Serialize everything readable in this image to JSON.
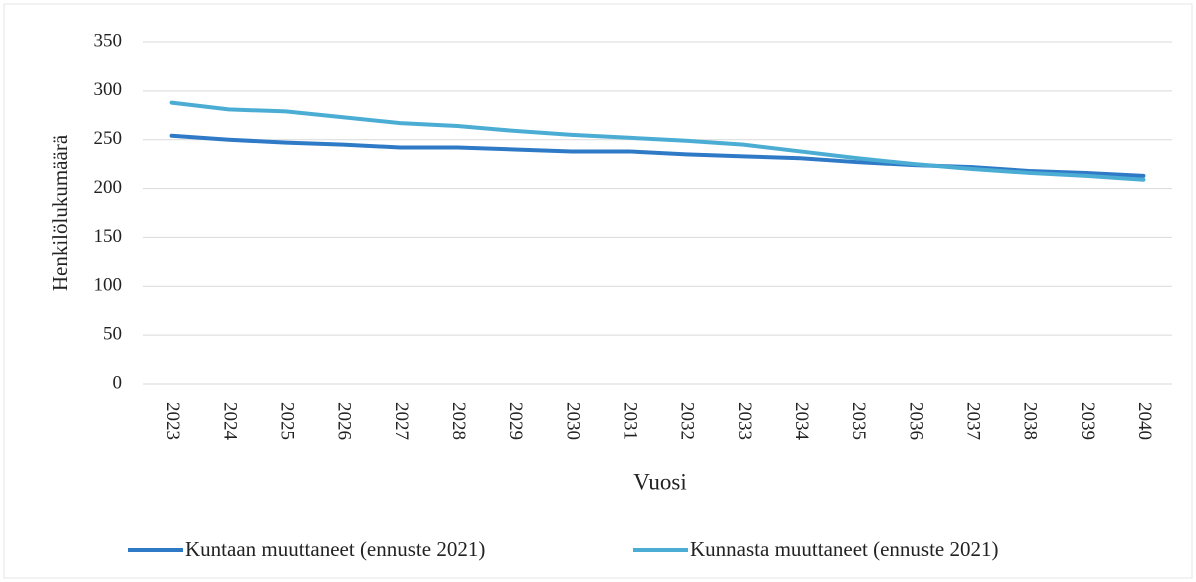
{
  "chart_data": {
    "type": "line",
    "x_label": "Vuosi",
    "y_label": "Henkilölukumäärä",
    "categories": [
      "2023",
      "2024",
      "2025",
      "2026",
      "2027",
      "2028",
      "2029",
      "2030",
      "2031",
      "2032",
      "2033",
      "2034",
      "2035",
      "2036",
      "2037",
      "2038",
      "2039",
      "2040"
    ],
    "series": [
      {
        "name": "Kuntaan muuttaneet (ennuste 2021)",
        "color": "#2f7ac6",
        "values": [
          254,
          250,
          247,
          245,
          242,
          242,
          240,
          238,
          238,
          235,
          233,
          231,
          227,
          224,
          222,
          218,
          216,
          213
        ]
      },
      {
        "name": "Kunnasta muuttaneet (ennuste 2021)",
        "color": "#4badd3",
        "values": [
          288,
          281,
          279,
          273,
          267,
          264,
          259,
          255,
          252,
          249,
          245,
          238,
          231,
          225,
          220,
          216,
          213,
          209
        ]
      }
    ],
    "ylim": [
      0,
      350
    ],
    "yticks": [
      0,
      50,
      100,
      150,
      200,
      250,
      300,
      350
    ],
    "grid": true,
    "legend": "bottom"
  }
}
